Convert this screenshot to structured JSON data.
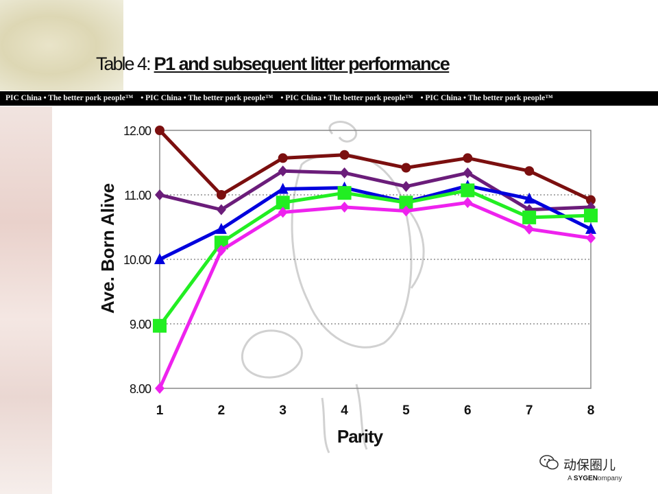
{
  "header": {
    "title_prefix": "Table 4:",
    "title_main": "P1  and subsequent litter performance"
  },
  "banner": {
    "segments": [
      "PIC China   • The better pork people™",
      "• PIC China   • The better pork people™",
      "• PIC China   • The better pork people™",
      "• PIC China   • The better pork people™"
    ]
  },
  "watermark": {
    "text": "动保圈儿"
  },
  "brand": {
    "prefix": "A ",
    "name": "SYGEN",
    "suffix": "ompany"
  },
  "colors": {
    "maroon": "#7b0f0f",
    "purple": "#6b1d7a",
    "blue": "#0000dd",
    "green": "#22ee22",
    "magenta": "#ee22ee"
  },
  "chart_data": {
    "type": "line",
    "title": "",
    "xlabel": "Parity",
    "ylabel": "Ave. Born Alive",
    "x": [
      1,
      2,
      3,
      4,
      5,
      6,
      7,
      8
    ],
    "x_tick_labels": [
      "1",
      "2",
      "3",
      "4",
      "5",
      "6",
      "7",
      "8"
    ],
    "ylim": [
      8.0,
      12.0
    ],
    "y_ticks": [
      8,
      9,
      10,
      11,
      12
    ],
    "y_tick_labels": [
      "8.00",
      "9.00",
      "10.00",
      "11.00",
      "12.00"
    ],
    "grid": "horizontal dotted",
    "legend": "none",
    "series": [
      {
        "color": "#7b0f0f",
        "marker": "circle",
        "values": [
          12.0,
          11.0,
          11.57,
          11.62,
          11.42,
          11.57,
          11.37,
          10.92
        ]
      },
      {
        "color": "#6b1d7a",
        "marker": "diamond",
        "values": [
          11.0,
          10.77,
          11.37,
          11.34,
          11.13,
          11.34,
          10.77,
          10.81
        ]
      },
      {
        "color": "#0000dd",
        "marker": "triangle",
        "values": [
          10.0,
          10.47,
          11.09,
          11.11,
          10.89,
          11.14,
          10.94,
          10.47
        ]
      },
      {
        "color": "#22ee22",
        "marker": "square",
        "values": [
          8.97,
          10.26,
          10.88,
          11.03,
          10.88,
          11.07,
          10.65,
          10.68
        ]
      },
      {
        "color": "#ee22ee",
        "marker": "diamond",
        "values": [
          8.0,
          10.14,
          10.73,
          10.81,
          10.75,
          10.88,
          10.47,
          10.33
        ]
      }
    ]
  }
}
